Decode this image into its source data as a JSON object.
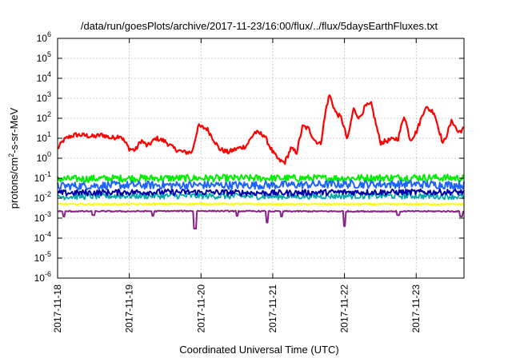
{
  "chart_data": {
    "type": "line",
    "title": "/data/run/goesPlots/archive/2017-11-23/16:00/flux/../flux/5daysEarthFluxes.txt",
    "xlabel": "Coordinated Universal Time (UTC)",
    "ylabel": {
      "main": "protons/cm",
      "sup": "2",
      "rest": "-s-sr-MeV"
    },
    "y_scale": "log",
    "ylim": [
      1e-06,
      1000000.0
    ],
    "xlim": [
      "2017-11-18T00:00",
      "2017-11-23T16:00"
    ],
    "grid": true,
    "legend": "none",
    "x_ticks": [
      "2017-11-18",
      "2017-11-19",
      "2017-11-20",
      "2017-11-21",
      "2017-11-22",
      "2017-11-23"
    ],
    "y_ticks": [
      {
        "value": 1e-06,
        "base": "10",
        "exp": "-6"
      },
      {
        "value": 1e-05,
        "base": "10",
        "exp": "-5"
      },
      {
        "value": 0.0001,
        "base": "10",
        "exp": "-4"
      },
      {
        "value": 0.001,
        "base": "10",
        "exp": "-3"
      },
      {
        "value": 0.01,
        "base": "10",
        "exp": "-2"
      },
      {
        "value": 0.1,
        "base": "10",
        "exp": "-1"
      },
      {
        "value": 1,
        "base": "10",
        "exp": "0"
      },
      {
        "value": 10,
        "base": "10",
        "exp": "1"
      },
      {
        "value": 100,
        "base": "10",
        "exp": "2"
      },
      {
        "value": 1000,
        "base": "10",
        "exp": "3"
      },
      {
        "value": 10000,
        "base": "10",
        "exp": "4"
      },
      {
        "value": 100000,
        "base": "10",
        "exp": "5"
      },
      {
        "value": 1000000,
        "base": "10",
        "exp": "6"
      }
    ],
    "series": [
      {
        "color": "#ff0000",
        "width": 2.2,
        "x": [
          "2017-11-18T00:00",
          "2017-11-18T02:00",
          "2017-11-18T04:00",
          "2017-11-18T06:00",
          "2017-11-18T09:00",
          "2017-11-18T12:00",
          "2017-11-18T15:00",
          "2017-11-18T18:00",
          "2017-11-18T21:00",
          "2017-11-19T00:00",
          "2017-11-19T02:00",
          "2017-11-19T04:00",
          "2017-11-19T06:00",
          "2017-11-19T09:00",
          "2017-11-19T12:00",
          "2017-11-19T15:00",
          "2017-11-19T18:00",
          "2017-11-19T21:00",
          "2017-11-19T23:00",
          "2017-11-20T02:00",
          "2017-11-20T04:00",
          "2017-11-20T06:00",
          "2017-11-20T09:00",
          "2017-11-20T12:00",
          "2017-11-20T15:00",
          "2017-11-20T18:00",
          "2017-11-20T21:00",
          "2017-11-21T00:00",
          "2017-11-21T02:00",
          "2017-11-21T04:00",
          "2017-11-21T06:00",
          "2017-11-21T08:00",
          "2017-11-21T10:00",
          "2017-11-21T12:00",
          "2017-11-21T14:00",
          "2017-11-21T16:00",
          "2017-11-21T18:00",
          "2017-11-21T19:00",
          "2017-11-21T21:00",
          "2017-11-21T23:00",
          "2017-11-22T01:00",
          "2017-11-22T03:00",
          "2017-11-22T05:00",
          "2017-11-22T07:00",
          "2017-11-22T09:00",
          "2017-11-22T12:00",
          "2017-11-22T15:00",
          "2017-11-22T18:00",
          "2017-11-22T20:00",
          "2017-11-22T22:00",
          "2017-11-23T00:00",
          "2017-11-23T03:00",
          "2017-11-23T06:00",
          "2017-11-23T09:00",
          "2017-11-23T12:00",
          "2017-11-23T14:00",
          "2017-11-23T16:00"
        ],
        "y": [
          3,
          8,
          12,
          15,
          14,
          12,
          15,
          10,
          14,
          3,
          2.5,
          8,
          4,
          10,
          7,
          3,
          2,
          2,
          40,
          30,
          10,
          3,
          2,
          3,
          4,
          20,
          15,
          2,
          0.8,
          0.6,
          3,
          2,
          40,
          30,
          8,
          5,
          400,
          1500,
          200,
          100,
          8,
          300,
          100,
          400,
          500,
          6,
          8,
          10,
          150,
          8,
          20,
          350,
          200,
          5,
          80,
          20,
          30
        ],
        "jitter": 0.12
      },
      {
        "color": "#00ee00",
        "width": 2,
        "x": [
          "2017-11-18T00:00",
          "2017-11-19T00:00",
          "2017-11-20T00:00",
          "2017-11-21T00:00",
          "2017-11-22T00:00",
          "2017-11-23T00:00",
          "2017-11-23T16:00"
        ],
        "y": [
          0.09,
          0.1,
          0.1,
          0.1,
          0.1,
          0.11,
          0.1
        ],
        "jitter": 0.18
      },
      {
        "color": "#1e64ff",
        "width": 2,
        "x": [
          "2017-11-18T00:00",
          "2017-11-19T00:00",
          "2017-11-20T00:00",
          "2017-11-21T00:00",
          "2017-11-22T00:00",
          "2017-11-23T00:00",
          "2017-11-23T16:00"
        ],
        "y": [
          0.04,
          0.045,
          0.045,
          0.045,
          0.05,
          0.05,
          0.045
        ],
        "jitter": 0.2
      },
      {
        "color": "#00aaaa",
        "width": 1.8,
        "x": [
          "2017-11-18T00:00",
          "2017-11-19T00:00",
          "2017-11-20T00:00",
          "2017-11-21T00:00",
          "2017-11-22T00:00",
          "2017-11-23T00:00",
          "2017-11-23T16:00"
        ],
        "y": [
          0.012,
          0.013,
          0.013,
          0.012,
          0.013,
          0.013,
          0.012
        ],
        "jitter": 0.15
      },
      {
        "color": "#0000aa",
        "width": 2,
        "x": [
          "2017-11-18T00:00",
          "2017-11-19T00:00",
          "2017-11-20T00:00",
          "2017-11-21T00:00",
          "2017-11-22T00:00",
          "2017-11-23T00:00",
          "2017-11-23T16:00"
        ],
        "y": [
          0.018,
          0.02,
          0.02,
          0.018,
          0.02,
          0.02,
          0.02
        ],
        "jitter": 0.15
      },
      {
        "color": "#ffff00",
        "width": 2,
        "x": [
          "2017-11-18T00:00",
          "2017-11-19T00:00",
          "2017-11-20T00:00",
          "2017-11-21T00:00",
          "2017-11-22T00:00",
          "2017-11-23T00:00",
          "2017-11-23T16:00"
        ],
        "y": [
          0.005,
          0.005,
          0.0052,
          0.005,
          0.005,
          0.005,
          0.005
        ],
        "jitter": 0.04
      },
      {
        "color": "#882288",
        "width": 2,
        "x": [
          "2017-11-18T00:00",
          "2017-11-19T00:00",
          "2017-11-20T00:00",
          "2017-11-21T00:00",
          "2017-11-22T00:00",
          "2017-11-23T00:00",
          "2017-11-23T16:00"
        ],
        "y": [
          0.0022,
          0.0022,
          0.0023,
          0.0022,
          0.0022,
          0.0022,
          0.0022
        ],
        "jitter": 0.03,
        "dips": [
          [
            "2017-11-18T02:00",
            0.0012
          ],
          [
            "2017-11-18T12:00",
            0.0014
          ],
          [
            "2017-11-19T08:00",
            0.0013
          ],
          [
            "2017-11-19T22:00",
            0.0003
          ],
          [
            "2017-11-20T12:00",
            0.0013
          ],
          [
            "2017-11-20T22:00",
            0.0006
          ],
          [
            "2017-11-21T03:00",
            0.0012
          ],
          [
            "2017-11-22T00:00",
            0.0004
          ],
          [
            "2017-11-22T18:00",
            0.0014
          ],
          [
            "2017-11-23T15:00",
            0.0012
          ]
        ]
      }
    ]
  }
}
